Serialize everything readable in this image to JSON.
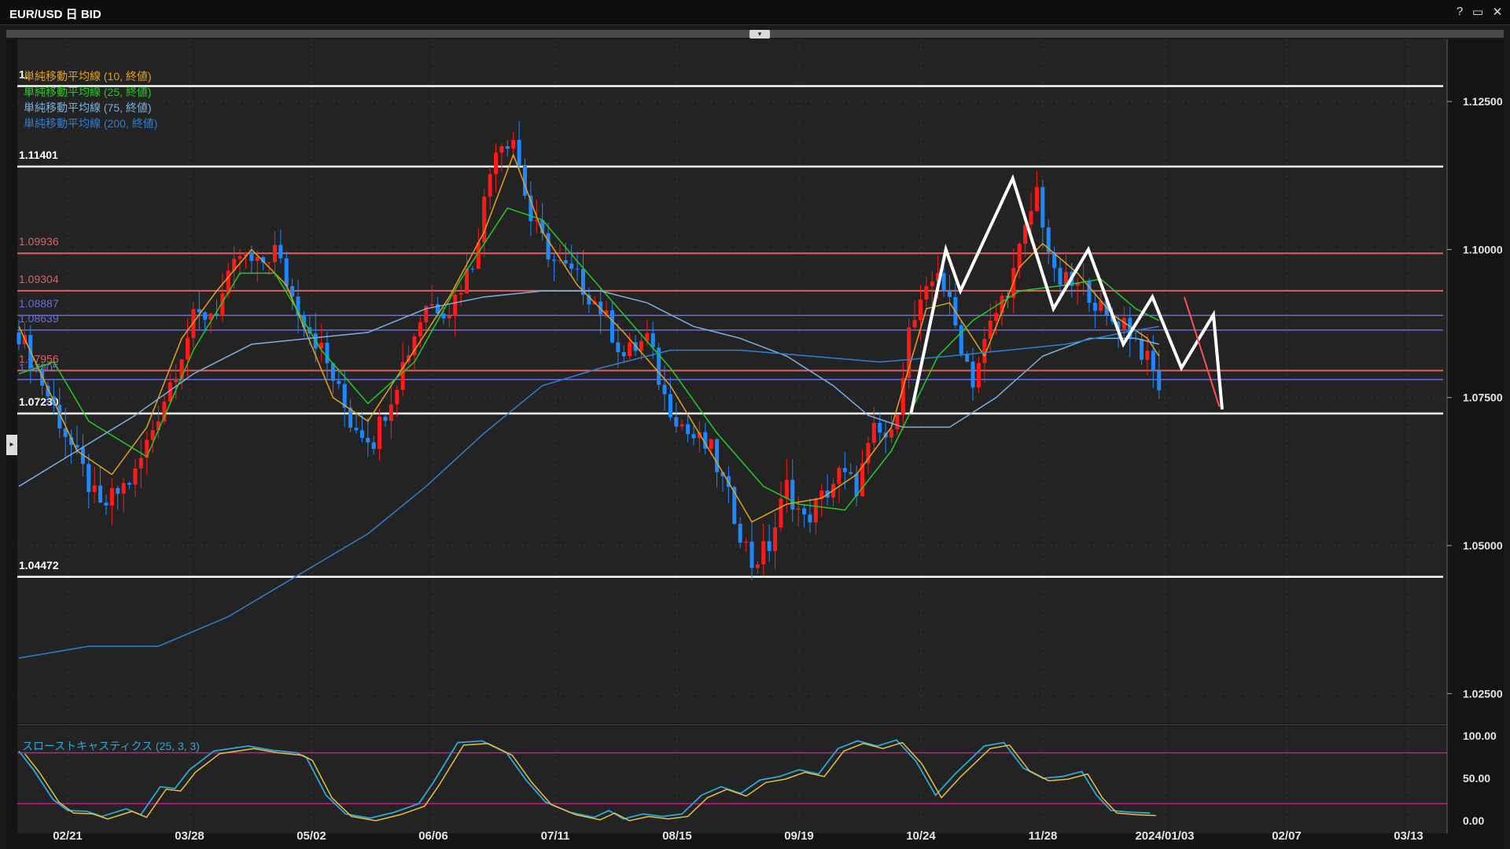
{
  "window": {
    "title": "EUR/USD 日 BID",
    "help_label": "?",
    "maximize_label": "▭",
    "close_label": "✕",
    "collapse_label": "▾",
    "side_handle_label": "▸"
  },
  "chart_data": {
    "type": "candlestick",
    "symbol": "EUR/USD",
    "timeframe": "日",
    "price_type": "BID",
    "ylim": [
      1.02,
      1.1355
    ],
    "y_ticks": [
      1.125,
      1.1,
      1.075,
      1.05,
      1.025
    ],
    "y_tick_labels": [
      "1.12500",
      "1.10000",
      "1.07500",
      "1.05000",
      "1.02500"
    ],
    "x_tick_labels": [
      "02/21",
      "03/28",
      "05/02",
      "06/06",
      "07/11",
      "08/15",
      "09/19",
      "10/24",
      "11/28",
      "2024/01/03",
      "02/07",
      "03/13"
    ],
    "grid": true,
    "colors": {
      "background": "#232323",
      "up": "#ff1a1a",
      "down": "#1e88ff",
      "white_level": "#ffffff",
      "red_level": "#e06060",
      "blue_level": "#6a6ae0",
      "sma10": "#e3a21a",
      "sma25": "#22cc22",
      "sma75": "#7ab0e0",
      "sma200": "#2f7fd0",
      "stoch_k": "#2aa8d8",
      "stoch_d": "#e8c040",
      "stoch_band": "#c02080"
    },
    "legend": [
      {
        "label": "単純移動平均線 (10, 終値)",
        "color": "#e3a21a"
      },
      {
        "label": "単純移動平均線 (25, 終値)",
        "color": "#22cc22"
      },
      {
        "label": "単純移動平均線 (75, 終値)",
        "color": "#7ab0e0"
      },
      {
        "label": "単純移動平均線 (200, 終値)",
        "color": "#2f7fd0"
      }
    ],
    "horizontal_levels": [
      {
        "value": 1.1276,
        "label": "1.",
        "style": "white"
      },
      {
        "value": 1.11401,
        "label": "1.11401",
        "style": "white"
      },
      {
        "value": 1.09936,
        "label": "1.09936",
        "style": "red"
      },
      {
        "value": 1.09304,
        "label": "1.09304",
        "style": "red"
      },
      {
        "value": 1.08887,
        "label": "1.08887",
        "style": "blue"
      },
      {
        "value": 1.08639,
        "label": "1.08639",
        "style": "blue"
      },
      {
        "value": 1.07956,
        "label": "1.07956",
        "style": "red"
      },
      {
        "value": 1.07805,
        "label": "1.07805",
        "style": "blue"
      },
      {
        "value": 1.0723,
        "label": "1.07230",
        "style": "white"
      },
      {
        "value": 1.04472,
        "label": "1.04472",
        "style": "white"
      }
    ],
    "close_anchors": [
      [
        0,
        1.086
      ],
      [
        8,
        1.069
      ],
      [
        14,
        1.056
      ],
      [
        20,
        1.062
      ],
      [
        25,
        1.075
      ],
      [
        30,
        1.088
      ],
      [
        34,
        1.09
      ],
      [
        38,
        1.099
      ],
      [
        41,
        1.097
      ],
      [
        44,
        1.1
      ],
      [
        47,
        1.092
      ],
      [
        52,
        1.083
      ],
      [
        57,
        1.071
      ],
      [
        61,
        1.068
      ],
      [
        65,
        1.078
      ],
      [
        70,
        1.091
      ],
      [
        74,
        1.09
      ],
      [
        78,
        1.098
      ],
      [
        82,
        1.118
      ],
      [
        85,
        1.119
      ],
      [
        88,
        1.105
      ],
      [
        92,
        1.098
      ],
      [
        96,
        1.095
      ],
      [
        100,
        1.09
      ],
      [
        104,
        1.082
      ],
      [
        108,
        1.085
      ],
      [
        111,
        1.075
      ],
      [
        115,
        1.069
      ],
      [
        119,
        1.066
      ],
      [
        122,
        1.058
      ],
      [
        126,
        1.047
      ],
      [
        129,
        1.05
      ],
      [
        132,
        1.06
      ],
      [
        135,
        1.054
      ],
      [
        138,
        1.058
      ],
      [
        141,
        1.062
      ],
      [
        144,
        1.06
      ],
      [
        147,
        1.069
      ],
      [
        150,
        1.068
      ],
      [
        153,
        1.086
      ],
      [
        156,
        1.092
      ],
      [
        158,
        1.097
      ],
      [
        161,
        1.087
      ],
      [
        164,
        1.078
      ],
      [
        167,
        1.087
      ],
      [
        171,
        1.096
      ],
      [
        175,
        1.11
      ],
      [
        178,
        1.095
      ],
      [
        181,
        1.094
      ],
      [
        184,
        1.093
      ],
      [
        187,
        1.088
      ],
      [
        190,
        1.088
      ],
      [
        193,
        1.083
      ],
      [
        196,
        1.077
      ]
    ],
    "sma_anchors": {
      "sma10": [
        [
          0,
          1.087
        ],
        [
          10,
          1.066
        ],
        [
          16,
          1.062
        ],
        [
          22,
          1.07
        ],
        [
          28,
          1.085
        ],
        [
          34,
          1.093
        ],
        [
          40,
          1.1
        ],
        [
          46,
          1.094
        ],
        [
          54,
          1.075
        ],
        [
          60,
          1.071
        ],
        [
          66,
          1.08
        ],
        [
          74,
          1.092
        ],
        [
          80,
          1.103
        ],
        [
          85,
          1.116
        ],
        [
          90,
          1.103
        ],
        [
          96,
          1.094
        ],
        [
          104,
          1.086
        ],
        [
          112,
          1.077
        ],
        [
          120,
          1.064
        ],
        [
          126,
          1.054
        ],
        [
          132,
          1.057
        ],
        [
          138,
          1.058
        ],
        [
          144,
          1.062
        ],
        [
          150,
          1.07
        ],
        [
          156,
          1.09
        ],
        [
          160,
          1.091
        ],
        [
          166,
          1.082
        ],
        [
          172,
          1.097
        ],
        [
          176,
          1.101
        ],
        [
          182,
          1.096
        ],
        [
          188,
          1.089
        ],
        [
          194,
          1.085
        ],
        [
          196,
          1.082
        ]
      ],
      "sma25": [
        [
          0,
          1.079
        ],
        [
          6,
          1.081
        ],
        [
          12,
          1.071
        ],
        [
          22,
          1.065
        ],
        [
          30,
          1.083
        ],
        [
          38,
          1.096
        ],
        [
          44,
          1.096
        ],
        [
          52,
          1.083
        ],
        [
          60,
          1.074
        ],
        [
          68,
          1.081
        ],
        [
          76,
          1.095
        ],
        [
          84,
          1.107
        ],
        [
          90,
          1.105
        ],
        [
          96,
          1.098
        ],
        [
          104,
          1.089
        ],
        [
          112,
          1.08
        ],
        [
          120,
          1.069
        ],
        [
          128,
          1.06
        ],
        [
          134,
          1.057
        ],
        [
          142,
          1.056
        ],
        [
          150,
          1.066
        ],
        [
          158,
          1.082
        ],
        [
          164,
          1.088
        ],
        [
          172,
          1.093
        ],
        [
          180,
          1.094
        ],
        [
          186,
          1.095
        ],
        [
          192,
          1.09
        ],
        [
          196,
          1.088
        ]
      ],
      "sma75": [
        [
          0,
          1.06
        ],
        [
          10,
          1.066
        ],
        [
          20,
          1.072
        ],
        [
          30,
          1.079
        ],
        [
          40,
          1.084
        ],
        [
          50,
          1.085
        ],
        [
          60,
          1.086
        ],
        [
          70,
          1.09
        ],
        [
          80,
          1.092
        ],
        [
          90,
          1.093
        ],
        [
          100,
          1.093
        ],
        [
          108,
          1.091
        ],
        [
          116,
          1.087
        ],
        [
          124,
          1.085
        ],
        [
          132,
          1.082
        ],
        [
          140,
          1.077
        ],
        [
          146,
          1.072
        ],
        [
          152,
          1.07
        ],
        [
          160,
          1.07
        ],
        [
          168,
          1.075
        ],
        [
          176,
          1.082
        ],
        [
          184,
          1.085
        ],
        [
          192,
          1.085
        ],
        [
          196,
          1.084
        ]
      ],
      "sma200": [
        [
          0,
          1.031
        ],
        [
          12,
          1.033
        ],
        [
          24,
          1.033
        ],
        [
          36,
          1.038
        ],
        [
          48,
          1.045
        ],
        [
          60,
          1.052
        ],
        [
          70,
          1.06
        ],
        [
          80,
          1.069
        ],
        [
          90,
          1.077
        ],
        [
          100,
          1.08
        ],
        [
          112,
          1.083
        ],
        [
          124,
          1.083
        ],
        [
          136,
          1.082
        ],
        [
          148,
          1.081
        ],
        [
          160,
          1.082
        ],
        [
          170,
          1.083
        ],
        [
          180,
          1.084
        ],
        [
          190,
          1.086
        ],
        [
          196,
          1.087
        ]
      ]
    },
    "zigzag": [
      [
        178.5,
        1.0723
      ],
      [
        184.5,
        1.1
      ],
      [
        187,
        1.093
      ],
      [
        196,
        1.112
      ],
      [
        203,
        1.09
      ],
      [
        209,
        1.1
      ],
      [
        215,
        1.084
      ],
      [
        220,
        1.092
      ],
      [
        225,
        1.08
      ],
      [
        230.5,
        1.089
      ],
      [
        232,
        1.073
      ]
    ],
    "red_segment": [
      [
        225.5,
        1.092
      ],
      [
        231.5,
        1.0735
      ]
    ],
    "stochastic": {
      "label": "スローストキャスティクス (25, 3, 3)",
      "params": [
        25,
        3,
        3
      ],
      "ylim": [
        0,
        100
      ],
      "y_ticks": [
        100,
        50,
        0
      ],
      "y_tick_labels": [
        "100.00",
        "50.00",
        "0.00"
      ],
      "bands": [
        80,
        20
      ],
      "anchors": [
        [
          0,
          82
        ],
        [
          3,
          60
        ],
        [
          7,
          25
        ],
        [
          10,
          12
        ],
        [
          14,
          11
        ],
        [
          17,
          5
        ],
        [
          22,
          14
        ],
        [
          25,
          7
        ],
        [
          29,
          40
        ],
        [
          32,
          38
        ],
        [
          35,
          60
        ],
        [
          40,
          82
        ],
        [
          47,
          88
        ],
        [
          52,
          83
        ],
        [
          57,
          80
        ],
        [
          59,
          74
        ],
        [
          63,
          30
        ],
        [
          67,
          8
        ],
        [
          72,
          3
        ],
        [
          77,
          10
        ],
        [
          82,
          20
        ],
        [
          85,
          45
        ],
        [
          90,
          92
        ],
        [
          95,
          94
        ],
        [
          100,
          80
        ],
        [
          104,
          48
        ],
        [
          108,
          22
        ],
        [
          113,
          10
        ],
        [
          118,
          4
        ],
        [
          121,
          12
        ],
        [
          124,
          2
        ],
        [
          128,
          8
        ],
        [
          132,
          5
        ],
        [
          136,
          8
        ],
        [
          140,
          30
        ],
        [
          144,
          40
        ],
        [
          148,
          32
        ],
        [
          152,
          48
        ],
        [
          156,
          52
        ],
        [
          160,
          60
        ],
        [
          164,
          55
        ],
        [
          168,
          85
        ],
        [
          172,
          94
        ],
        [
          176,
          88
        ],
        [
          180,
          95
        ],
        [
          184,
          70
        ],
        [
          188,
          30
        ],
        [
          192,
          55
        ],
        [
          198,
          88
        ],
        [
          202,
          92
        ],
        [
          206,
          62
        ],
        [
          210,
          50
        ],
        [
          214,
          52
        ],
        [
          218,
          58
        ],
        [
          221,
          30
        ],
        [
          224,
          12
        ],
        [
          228,
          10
        ],
        [
          232,
          9
        ]
      ]
    }
  }
}
